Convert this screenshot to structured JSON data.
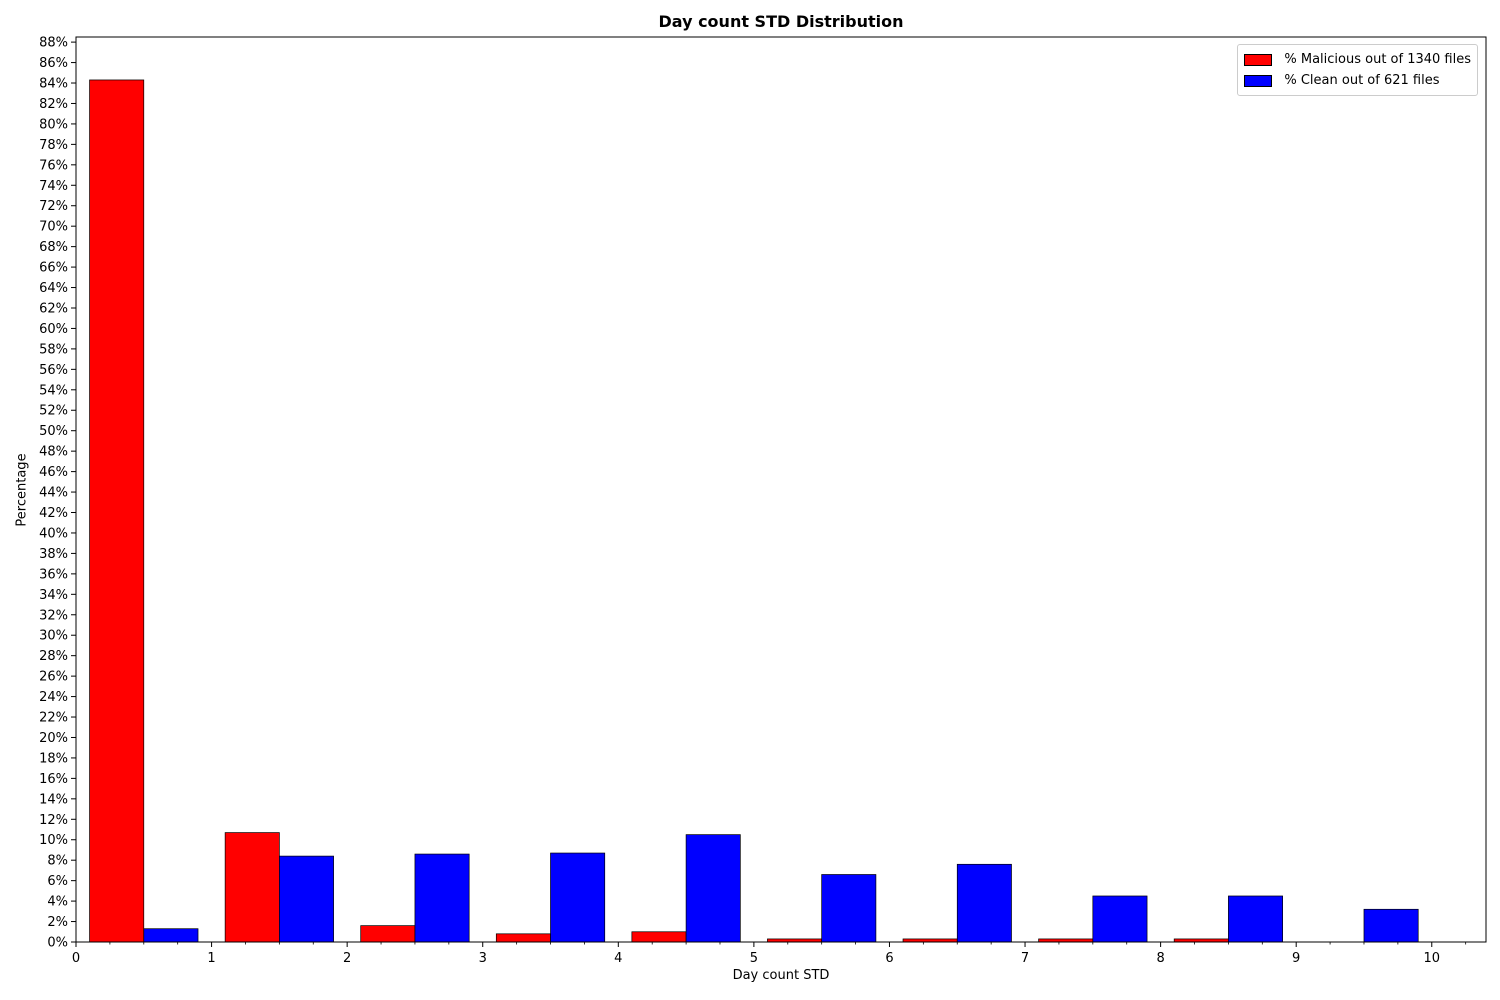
{
  "chart_data": {
    "type": "bar",
    "title": "Day count STD Distribution",
    "xlabel": "Day count STD",
    "ylabel": "Percentage",
    "xlim": [
      0,
      10.4
    ],
    "ylim": [
      0,
      88.5
    ],
    "x_ticks": [
      0,
      1,
      2,
      3,
      4,
      5,
      6,
      7,
      8,
      9,
      10
    ],
    "x_tick_labels": [
      "0",
      "1",
      "2",
      "3",
      "4",
      "5",
      "6",
      "7",
      "8",
      "9",
      "10"
    ],
    "y_ticks": [
      0,
      2,
      4,
      6,
      8,
      10,
      12,
      14,
      16,
      18,
      20,
      22,
      24,
      26,
      28,
      30,
      32,
      34,
      36,
      38,
      40,
      42,
      44,
      46,
      48,
      50,
      52,
      54,
      56,
      58,
      60,
      62,
      64,
      66,
      68,
      70,
      72,
      74,
      76,
      78,
      80,
      82,
      84,
      86,
      88
    ],
    "y_tick_labels": [
      "0%",
      "2%",
      "4%",
      "6%",
      "8%",
      "10%",
      "12%",
      "14%",
      "16%",
      "18%",
      "20%",
      "22%",
      "24%",
      "26%",
      "28%",
      "30%",
      "32%",
      "34%",
      "36%",
      "38%",
      "40%",
      "42%",
      "44%",
      "46%",
      "48%",
      "50%",
      "52%",
      "54%",
      "56%",
      "58%",
      "60%",
      "62%",
      "64%",
      "66%",
      "68%",
      "70%",
      "72%",
      "74%",
      "76%",
      "78%",
      "80%",
      "82%",
      "84%",
      "86%",
      "88%"
    ],
    "grid": false,
    "legend_position": "top-right",
    "bin_width": 0.8,
    "series": [
      {
        "name": "% Malicious out of 1340 files",
        "color": "#ff0000",
        "x": [
          0.1,
          1.1,
          2.1,
          3.1,
          4.1,
          5.1,
          6.1,
          7.1,
          8.1
        ],
        "values": [
          84.3,
          10.7,
          1.6,
          0.8,
          1.0,
          0.3,
          0.3,
          0.3,
          0.3
        ]
      },
      {
        "name": "% Clean out of 621 files",
        "color": "#0000ff",
        "x": [
          0.5,
          1.5,
          2.5,
          3.5,
          4.5,
          5.5,
          6.5,
          7.5,
          8.5,
          9.5
        ],
        "values": [
          1.3,
          8.4,
          8.6,
          8.7,
          10.5,
          6.6,
          7.6,
          4.5,
          4.5,
          3.2
        ]
      }
    ]
  }
}
